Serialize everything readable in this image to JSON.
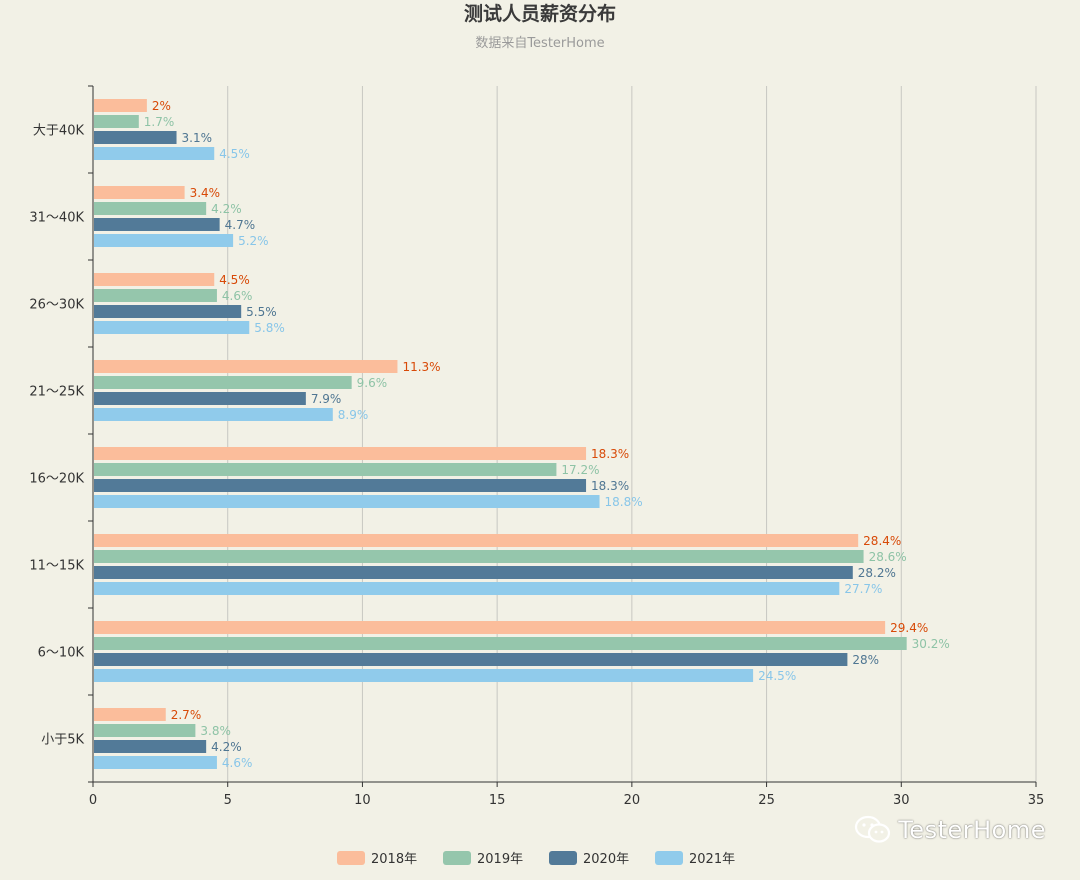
{
  "chart_data": {
    "type": "bar",
    "orientation": "horizontal",
    "title": "测试人员薪资分布",
    "subtitle": "数据来自TesterHome",
    "categories": [
      "大于40K",
      "31～40K",
      "26～30K",
      "21～25K",
      "16～20K",
      "11～15K",
      "6～10K",
      "小于5K"
    ],
    "xlim": [
      0,
      35
    ],
    "x_ticks": [
      0,
      5,
      10,
      15,
      20,
      25,
      30,
      35
    ],
    "grid": true,
    "legend_position": "bottom-center",
    "label_suffix": "%",
    "series": [
      {
        "name": "2018年",
        "color": "#fbbd9b",
        "label_color": "#d84a08",
        "values": [
          2,
          3.4,
          4.5,
          11.3,
          18.3,
          28.4,
          29.4,
          2.7
        ]
      },
      {
        "name": "2019年",
        "color": "#95c6ac",
        "label_color": "#8ec3a6",
        "values": [
          1.7,
          4.2,
          4.6,
          9.6,
          17.2,
          28.6,
          30.2,
          3.8
        ]
      },
      {
        "name": "2020年",
        "color": "#527a98",
        "label_color": "#4f7692",
        "values": [
          3.1,
          4.7,
          5.5,
          7.9,
          18.3,
          28.2,
          28,
          4.2
        ]
      },
      {
        "name": "2021年",
        "color": "#90cbeb",
        "label_color": "#88c6e9",
        "values": [
          4.5,
          5.2,
          5.8,
          8.9,
          18.8,
          27.7,
          24.5,
          4.6
        ]
      }
    ]
  },
  "watermark": {
    "text": "TesterHome",
    "icon": "wechat-icon"
  }
}
